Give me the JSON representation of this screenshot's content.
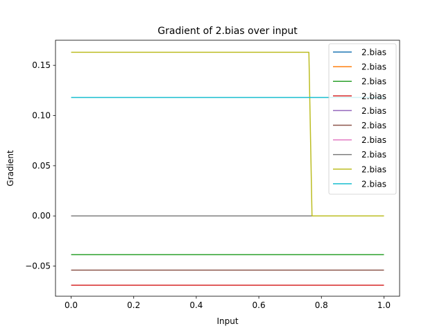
{
  "chart_data": {
    "type": "line",
    "title": "Gradient of 2.bias over input",
    "xlabel": "Input",
    "ylabel": "Gradient",
    "xlim": [
      -0.05,
      1.05
    ],
    "ylim": [
      -0.08,
      0.175
    ],
    "xticks": [
      0.0,
      0.2,
      0.4,
      0.6,
      0.8,
      1.0
    ],
    "xtick_labels": [
      "0.0",
      "0.2",
      "0.4",
      "0.6",
      "0.8",
      "1.0"
    ],
    "yticks": [
      -0.05,
      0.0,
      0.05,
      0.1,
      0.15
    ],
    "ytick_labels": [
      "−0.05",
      "0.00",
      "0.05",
      "0.10",
      "0.15"
    ],
    "grid": false,
    "legend_position": "top-right",
    "series": [
      {
        "name": "2.bias",
        "color": "#1f77b4",
        "x": [
          0.0,
          1.0
        ],
        "y": [
          0.0,
          0.0
        ]
      },
      {
        "name": "2.bias",
        "color": "#ff7f0e",
        "x": [
          0.0,
          1.0
        ],
        "y": [
          0.0,
          0.0
        ]
      },
      {
        "name": "2.bias",
        "color": "#2ca02c",
        "x": [
          0.0,
          1.0
        ],
        "y": [
          -0.0385,
          -0.0385
        ]
      },
      {
        "name": "2.bias",
        "color": "#d62728",
        "x": [
          0.0,
          1.0
        ],
        "y": [
          -0.069,
          -0.069
        ]
      },
      {
        "name": "2.bias",
        "color": "#9467bd",
        "x": [
          0.0,
          1.0
        ],
        "y": [
          0.0,
          0.0
        ]
      },
      {
        "name": "2.bias",
        "color": "#8c564b",
        "x": [
          0.0,
          1.0
        ],
        "y": [
          -0.054,
          -0.054
        ]
      },
      {
        "name": "2.bias",
        "color": "#e377c2",
        "x": [
          0.0,
          1.0
        ],
        "y": [
          0.0,
          0.0
        ]
      },
      {
        "name": "2.bias",
        "color": "#7f7f7f",
        "x": [
          0.0,
          1.0
        ],
        "y": [
          0.0,
          0.0
        ]
      },
      {
        "name": "2.bias",
        "color": "#bcbd22",
        "x": [
          0.0,
          0.76,
          0.77,
          1.0
        ],
        "y": [
          0.163,
          0.163,
          0.0,
          0.0
        ]
      },
      {
        "name": "2.bias",
        "color": "#17becf",
        "x": [
          0.0,
          1.0
        ],
        "y": [
          0.118,
          0.118
        ]
      }
    ]
  }
}
